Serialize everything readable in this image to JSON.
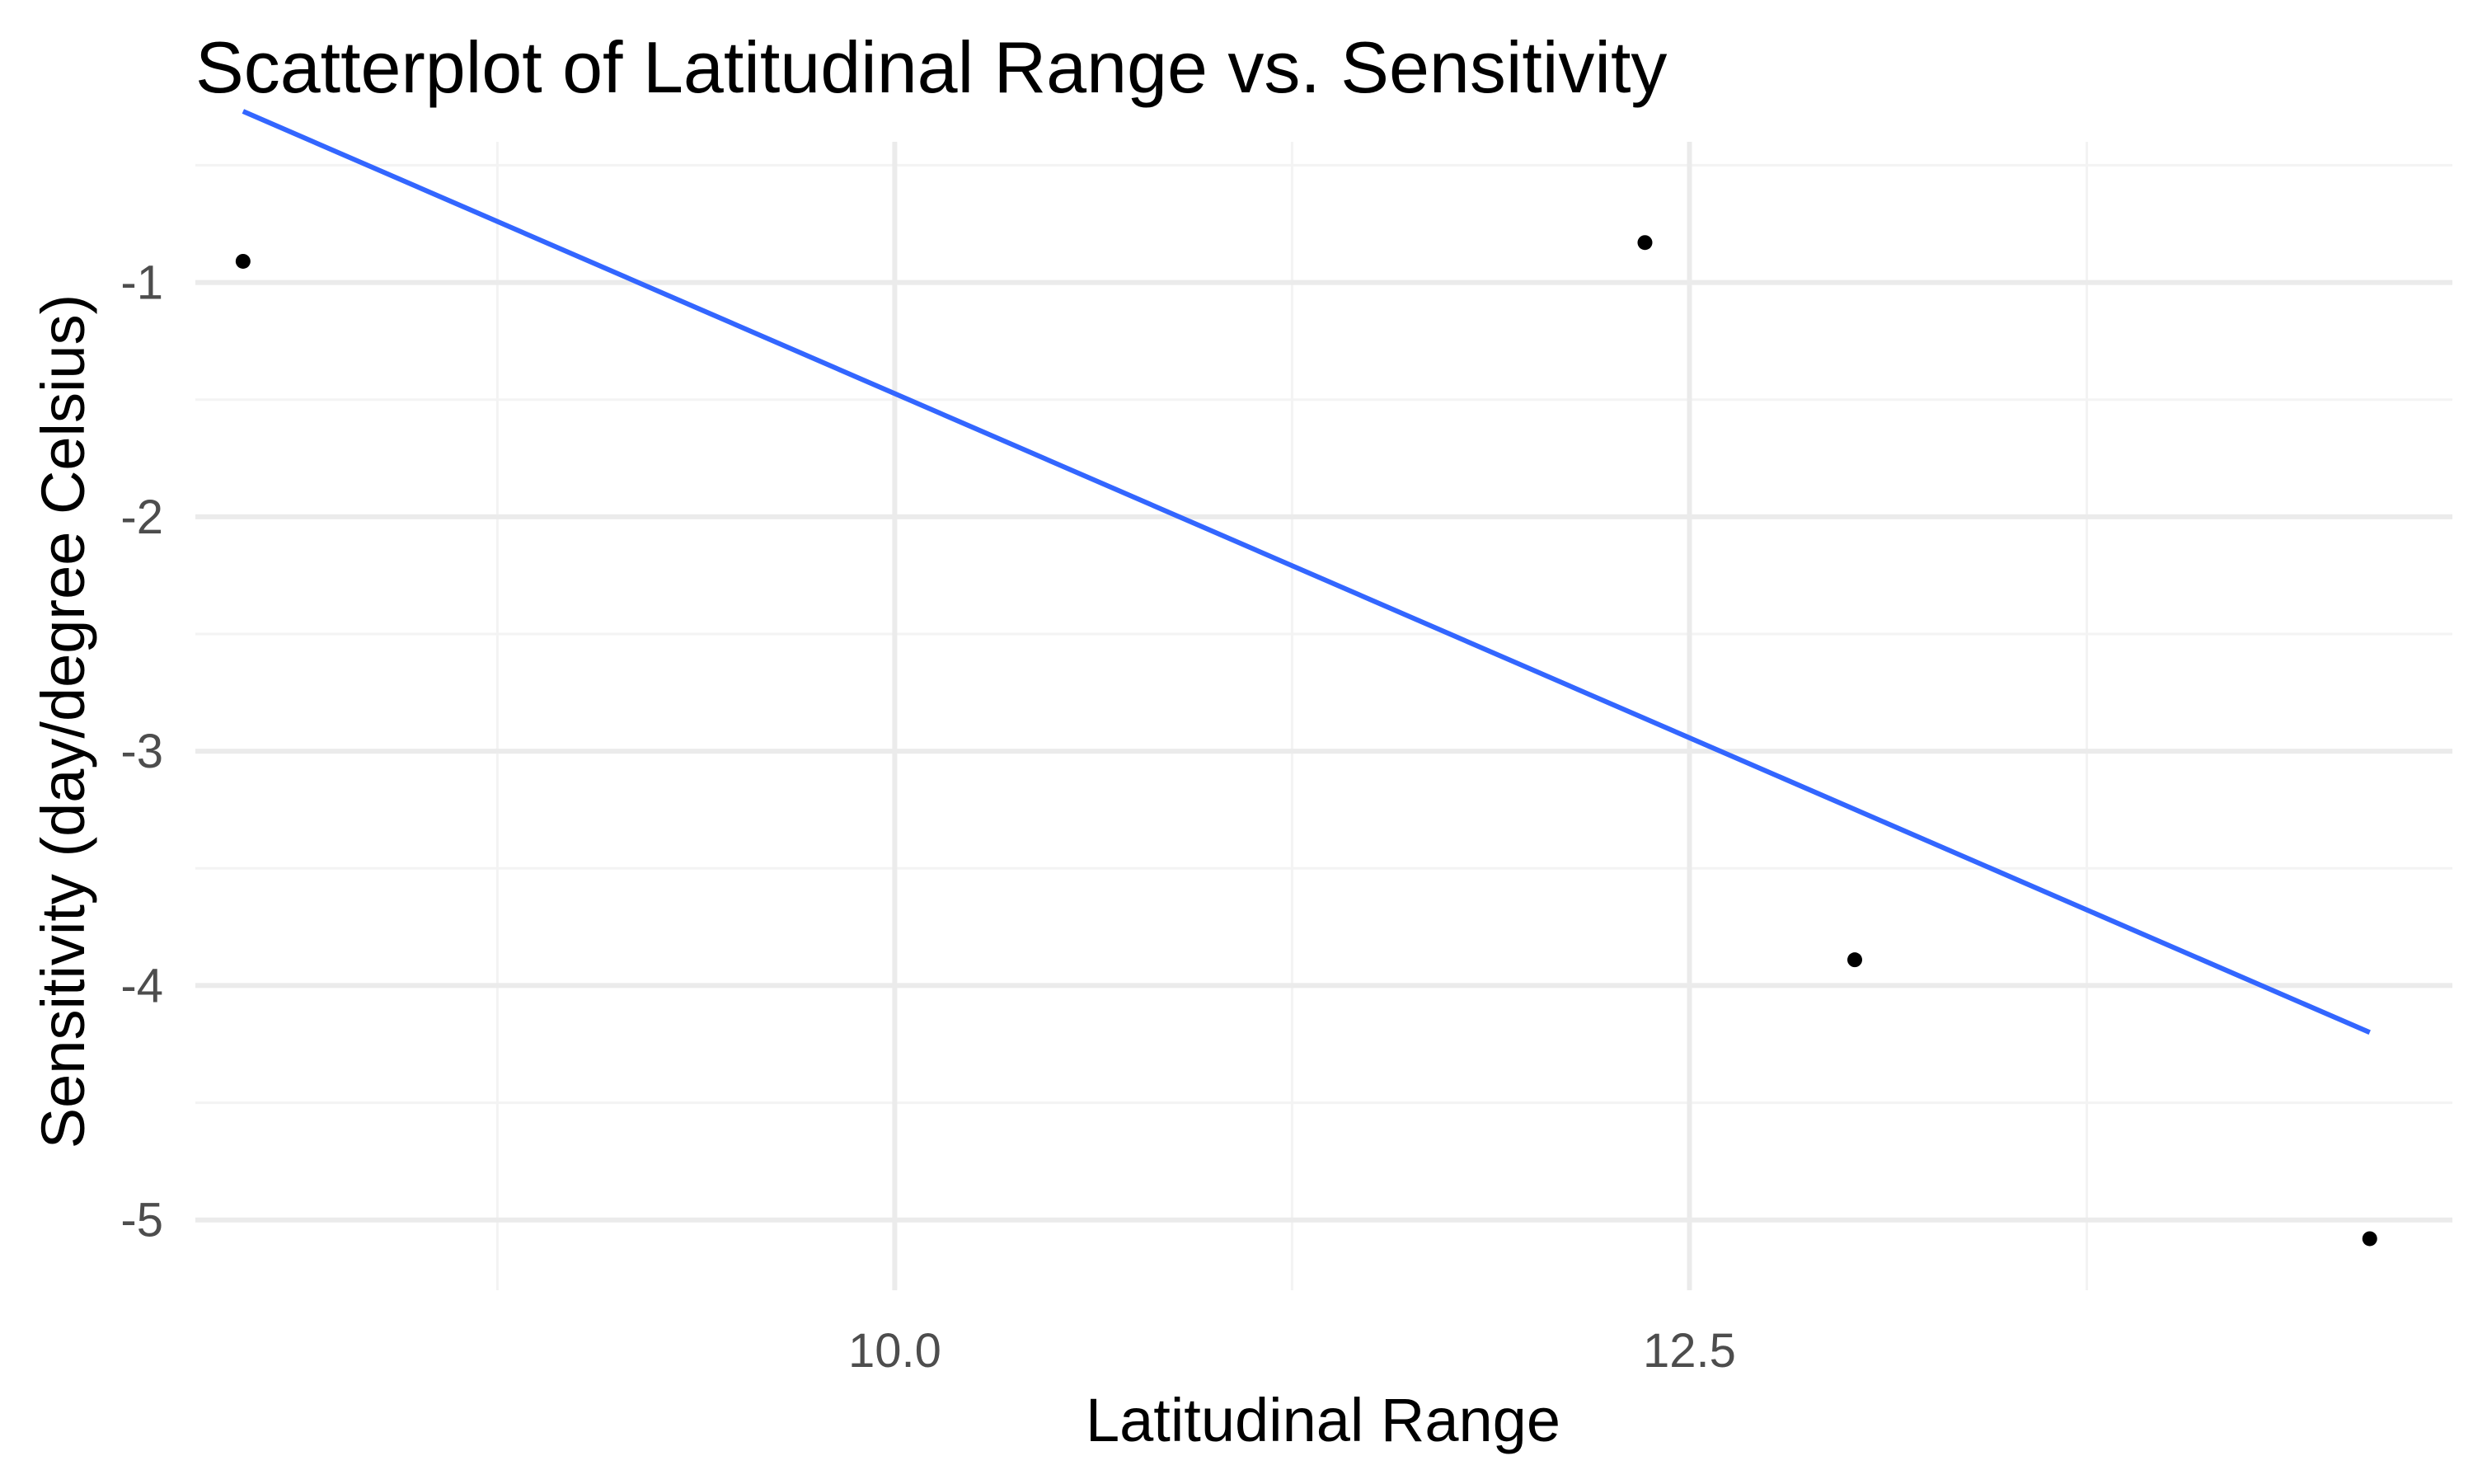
{
  "chart_data": {
    "type": "scatter",
    "title": "Scatterplot of Latitudinal Range vs. Sensitivity",
    "xlabel": "Latitudinal Range",
    "ylabel": "Sensitivity (day/degree Celsius)",
    "xlim": [
      7.8,
      14.9
    ],
    "ylim": [
      -5.3,
      -0.4
    ],
    "x_ticks": [
      10.0,
      12.5
    ],
    "x_tick_labels": [
      "10.0",
      "12.5"
    ],
    "x_minor_ticks": [
      8.75,
      11.25,
      13.75
    ],
    "y_ticks": [
      -1,
      -2,
      -3,
      -4,
      -5
    ],
    "y_tick_labels": [
      "-1",
      "-2",
      "-3",
      "-4",
      "-5"
    ],
    "y_minor_ticks": [
      -0.5,
      -1.5,
      -2.5,
      -3.5,
      -4.5
    ],
    "grid": true,
    "legend": "none",
    "points": [
      {
        "x": 7.95,
        "y": -0.91
      },
      {
        "x": 12.36,
        "y": -0.83
      },
      {
        "x": 13.02,
        "y": -3.89
      },
      {
        "x": 14.64,
        "y": -5.08
      }
    ],
    "trend_line": {
      "x": [
        7.95,
        14.64
      ],
      "y": [
        -0.27,
        -4.2
      ]
    },
    "colors": {
      "points": "#000000",
      "trend_line": "#3366ff",
      "grid_major": "#ebebeb",
      "grid_minor": "#f3f3f3"
    }
  }
}
